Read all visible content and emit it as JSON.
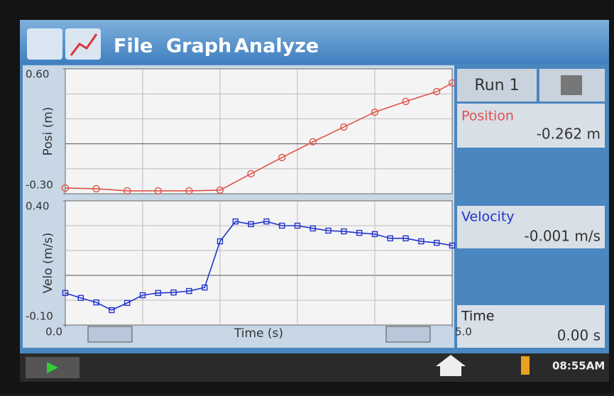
{
  "menu": [
    "File",
    "Graph",
    "Analyze"
  ],
  "chart_data": [
    {
      "type": "line",
      "ylabel": "Posi (m)",
      "x": [
        0,
        0.4,
        0.8,
        1.2,
        1.6,
        2.0,
        2.4,
        2.8,
        3.2,
        3.6,
        4.0,
        4.4,
        4.8,
        5.0
      ],
      "series": [
        {
          "name": "Position",
          "color": "#e0534a",
          "marker": "circle",
          "values": [
            -0.259,
            -0.264,
            -0.279,
            -0.279,
            -0.279,
            -0.274,
            -0.156,
            -0.039,
            0.074,
            0.181,
            0.288,
            0.365,
            0.436,
            0.498
          ]
        }
      ],
      "xlim": [
        0,
        5
      ],
      "ylim": [
        -0.3,
        0.6
      ],
      "yticks": [
        {
          "value": 0.6,
          "label": "0.60"
        },
        {
          "value": -0.3,
          "label": "-0.30"
        }
      ]
    },
    {
      "type": "line",
      "ylabel": "Velo (m/s)",
      "xlabel": "Time (s)",
      "x": [
        0,
        0.2,
        0.4,
        0.6,
        0.8,
        1.0,
        1.2,
        1.4,
        1.6,
        1.8,
        2.0,
        2.2,
        2.4,
        2.6,
        2.8,
        3.0,
        3.2,
        3.4,
        3.6,
        3.8,
        4.0,
        4.2,
        4.4,
        4.6,
        4.8,
        5.0
      ],
      "series": [
        {
          "name": "Velocity",
          "color": "#2233cc",
          "marker": "square",
          "values": [
            0.029,
            0.009,
            -0.009,
            -0.04,
            -0.011,
            0.02,
            0.029,
            0.031,
            0.037,
            0.051,
            0.237,
            0.317,
            0.306,
            0.317,
            0.3,
            0.3,
            0.289,
            0.28,
            0.277,
            0.271,
            0.266,
            0.249,
            0.249,
            0.237,
            0.231,
            0.22
          ]
        }
      ],
      "xlim": [
        0,
        5
      ],
      "ylim": [
        -0.1,
        0.4
      ],
      "xticks": [
        {
          "value": 0,
          "label": "0.0"
        },
        {
          "value": 5,
          "label": "5.0"
        }
      ],
      "yticks": [
        {
          "value": 0.4,
          "label": "0.40"
        },
        {
          "value": -0.1,
          "label": "-0.10"
        }
      ]
    }
  ],
  "sidebar": {
    "run": "Run 1",
    "position_reading": "-0.262 m",
    "velocity_reading": "-0.001 m/s",
    "time_label": "Time",
    "time_reading": "0.00 s"
  },
  "clock": "08:55AM"
}
